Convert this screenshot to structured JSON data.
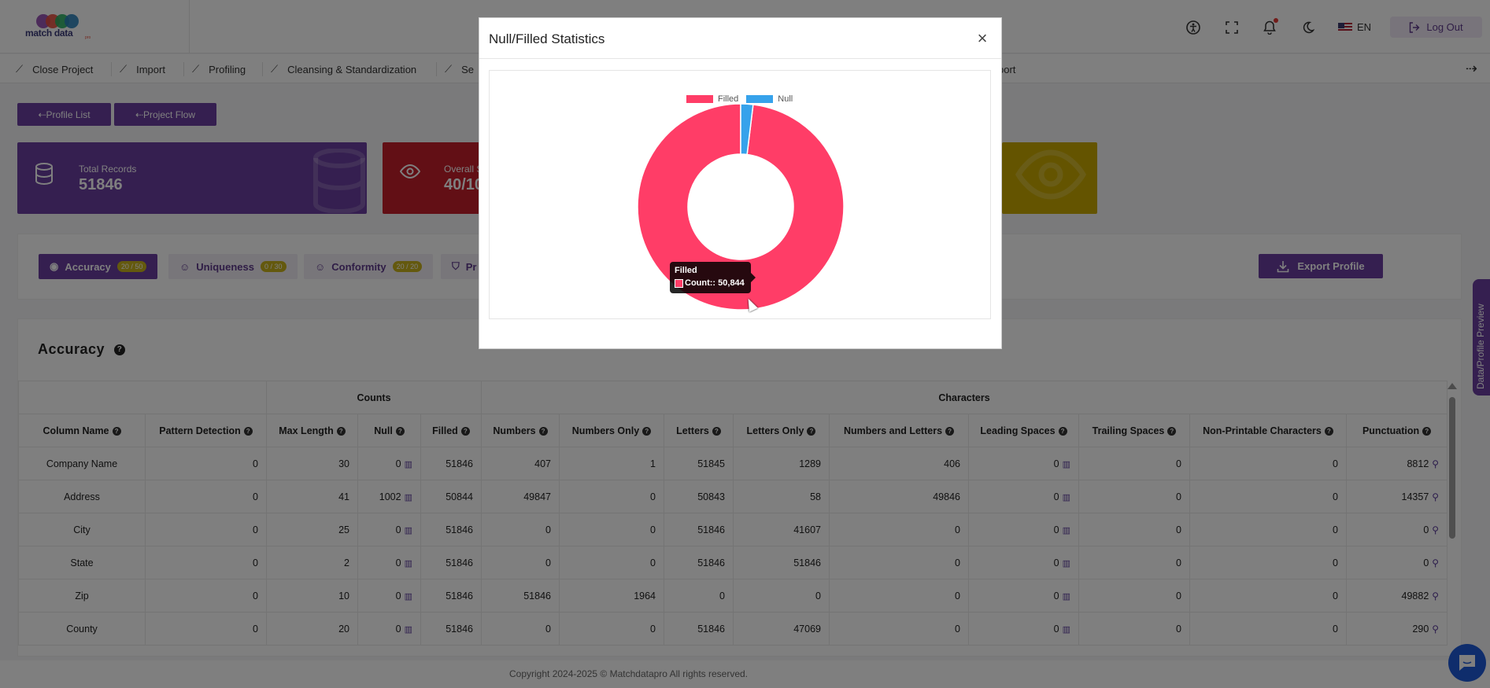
{
  "header": {
    "logo_text": "match data",
    "logo_tag": "pro",
    "language": "EN",
    "logout_label": "Log Out"
  },
  "nav": {
    "items": [
      "Close Project",
      "Import",
      "Profiling",
      "Cleansing & Standardization",
      "Se",
      "port"
    ]
  },
  "actions": {
    "profile_list": "⇠Profile List",
    "project_flow": "⇠Project Flow"
  },
  "cards": [
    {
      "label": "Total Records",
      "value": "51846",
      "color": "#6a3fa0"
    },
    {
      "label": "Overall S",
      "value": "40/10",
      "color": "#c41e2a"
    },
    {
      "label": "",
      "value": "",
      "color": "#c9a900"
    }
  ],
  "tabs": [
    {
      "label": "Accuracy",
      "badge": "20 / 50"
    },
    {
      "label": "Uniqueness",
      "badge": "0 / 30"
    },
    {
      "label": "Conformity",
      "badge": "20 / 20"
    },
    {
      "label": "Pr",
      "badge": ""
    }
  ],
  "export_label": "Export Profile",
  "accuracy": {
    "title": "Accuracy",
    "group_counts": "Counts",
    "group_characters": "Characters",
    "columns": [
      "Column Name",
      "Pattern Detection",
      "Max Length",
      "Null",
      "Filled",
      "Numbers",
      "Numbers Only",
      "Letters",
      "Letters Only",
      "Numbers and Letters",
      "Leading Spaces",
      "Trailing Spaces",
      "Non-Printable Characters",
      "Punctuation"
    ],
    "rows": [
      [
        "Company Name",
        "0",
        "30",
        "0",
        "51846",
        "407",
        "1",
        "51845",
        "1289",
        "406",
        "0",
        "0",
        "0",
        "8812"
      ],
      [
        "Address",
        "0",
        "41",
        "1002",
        "50844",
        "49847",
        "0",
        "50843",
        "58",
        "49846",
        "0",
        "0",
        "0",
        "14357"
      ],
      [
        "City",
        "0",
        "25",
        "0",
        "51846",
        "0",
        "0",
        "51846",
        "41607",
        "0",
        "0",
        "0",
        "0",
        "0"
      ],
      [
        "State",
        "0",
        "2",
        "0",
        "51846",
        "0",
        "0",
        "51846",
        "51846",
        "0",
        "0",
        "0",
        "0",
        "0"
      ],
      [
        "Zip",
        "0",
        "10",
        "0",
        "51846",
        "51846",
        "1964",
        "0",
        "0",
        "0",
        "0",
        "0",
        "0",
        "49882"
      ],
      [
        "County",
        "0",
        "20",
        "0",
        "51846",
        "0",
        "0",
        "51846",
        "47069",
        "0",
        "0",
        "0",
        "0",
        "290"
      ]
    ]
  },
  "footer": {
    "copyright": "Copyright 2024-2025 © Matchdatapro All rights reserved."
  },
  "side_tab_label": "Data/Profile Preview",
  "modal": {
    "title": "Null/Filled Statistics",
    "close_glyph": "×"
  },
  "chart_data": {
    "type": "pie",
    "variant": "doughnut",
    "categories": [
      "Filled",
      "Null"
    ],
    "values": [
      50844,
      1002
    ],
    "colors": [
      "#ff3d67",
      "#36a2eb"
    ],
    "legend_position": "top",
    "tooltip": {
      "title": "Filled",
      "text": "Count:: 50,844"
    }
  }
}
